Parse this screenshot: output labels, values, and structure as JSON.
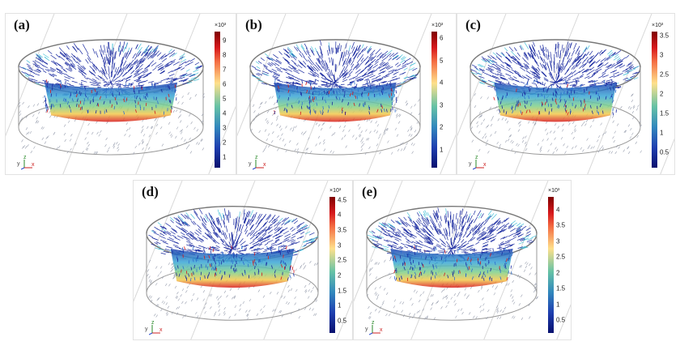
{
  "panels": [
    {
      "label": "(a)",
      "exponent": "×10³",
      "ticks": [
        "9",
        "8",
        "7",
        "6",
        "5",
        "4",
        "3",
        "2",
        "1"
      ],
      "max": 9.6,
      "min": 0.3
    },
    {
      "label": "(b)",
      "exponent": "×10³",
      "ticks": [
        "6",
        "5",
        "4",
        "3",
        "2",
        "1"
      ],
      "max": 6.3,
      "min": 0.2
    },
    {
      "label": "(c)",
      "exponent": "×10³",
      "ticks": [
        "3.5",
        "3",
        "2.5",
        "2",
        "1.5",
        "1",
        "0.5"
      ],
      "max": 3.6,
      "min": 0.1
    },
    {
      "label": "(d)",
      "exponent": "×10³",
      "ticks": [
        "4.5",
        "4",
        "3.5",
        "3",
        "2.5",
        "2",
        "1.5",
        "1",
        "0.5"
      ],
      "max": 4.6,
      "min": 0.1
    },
    {
      "label": "(e)",
      "exponent": "×10³",
      "ticks": [
        "4",
        "3.5",
        "3",
        "2.5",
        "2",
        "1.5",
        "1",
        "0.5"
      ],
      "max": 4.4,
      "min": 0.1
    }
  ],
  "axes_triad": {
    "y": "y",
    "z": "z",
    "x": "x"
  },
  "colors": {
    "arrow_far": "#1a2aa0",
    "arrow_near": "#9aa0b0",
    "hot": "#d7191c",
    "mid": "#4cc3d9"
  }
}
